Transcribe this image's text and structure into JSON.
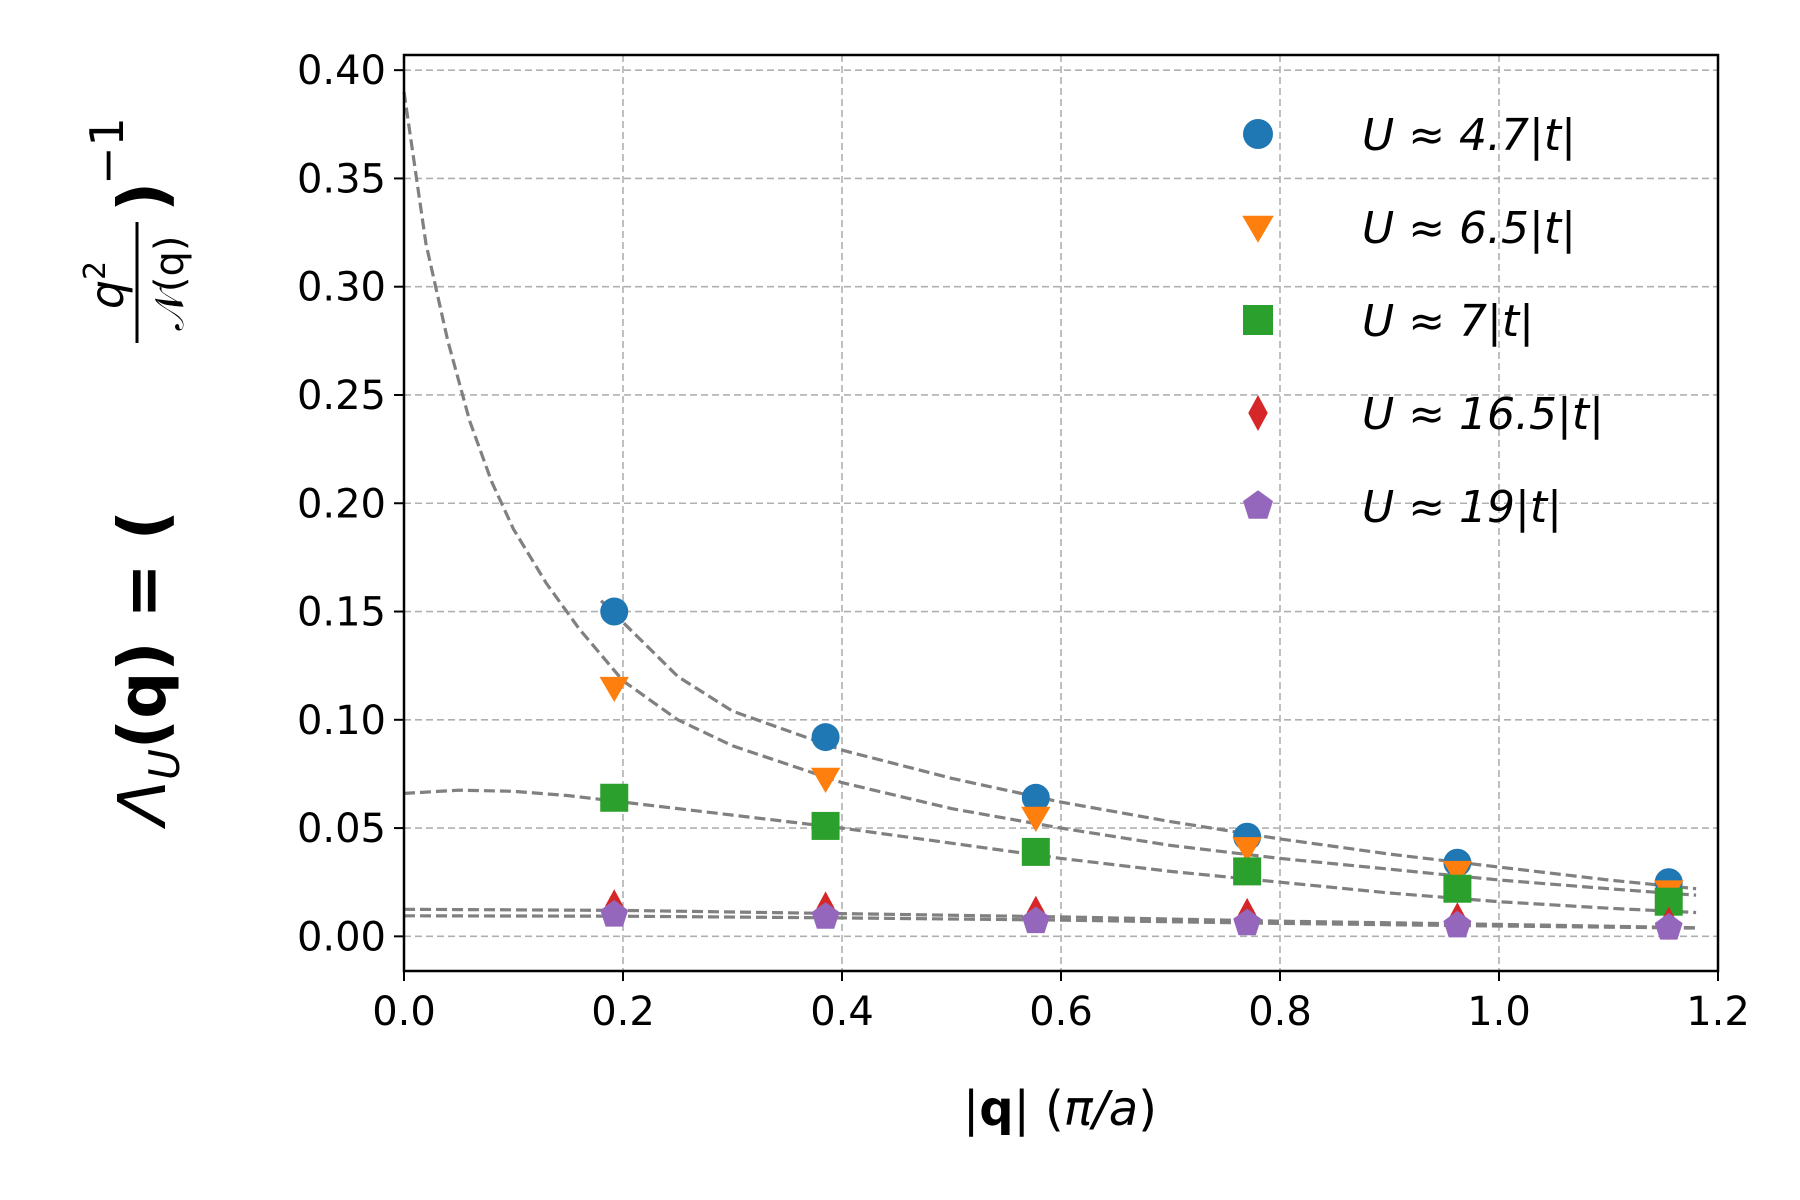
{
  "chart_data": {
    "type": "scatter",
    "xlabel_parts": [
      "|",
      "q",
      "| (",
      "π/a",
      ")"
    ],
    "ylabel_parts": {
      "lambda": "Λ",
      "sub": "U",
      "lhs_rest": "(q) = (",
      "num": "q",
      "num_exp": "2",
      "den": "𝒩(q)",
      "close": ")",
      "exp": "−1"
    },
    "xlim": [
      0.0,
      1.2
    ],
    "ylim": [
      -0.016,
      0.407
    ],
    "xticks": [
      "0.0",
      "0.2",
      "0.4",
      "0.6",
      "0.8",
      "1.0",
      "1.2"
    ],
    "xtick_values": [
      0.0,
      0.2,
      0.4,
      0.6,
      0.8,
      1.0,
      1.2
    ],
    "yticks": [
      "0.00",
      "0.05",
      "0.10",
      "0.15",
      "0.20",
      "0.25",
      "0.30",
      "0.35",
      "0.40"
    ],
    "ytick_values": [
      0.0,
      0.05,
      0.1,
      0.15,
      0.2,
      0.25,
      0.3,
      0.35,
      0.4
    ],
    "grid": true,
    "legend_placement": "top-right",
    "x": [
      0.192,
      0.385,
      0.577,
      0.77,
      0.962,
      1.155
    ],
    "series": [
      {
        "name": "U ≈ 4.7|t|",
        "marker": "circle",
        "color": "#1f77b4",
        "values": [
          0.15,
          0.092,
          0.064,
          0.046,
          0.034,
          0.025
        ]
      },
      {
        "name": "U ≈ 6.5|t|",
        "marker": "triangle-down",
        "color": "#ff7f0e",
        "values": [
          0.115,
          0.073,
          0.055,
          0.041,
          0.03,
          0.021
        ]
      },
      {
        "name": "U ≈ 7|t|",
        "marker": "square",
        "color": "#2ca02c",
        "values": [
          0.064,
          0.051,
          0.039,
          0.03,
          0.022,
          0.016
        ]
      },
      {
        "name": "U ≈ 16.5|t|",
        "marker": "thin-diamond",
        "color": "#d62728",
        "values": [
          0.014,
          0.013,
          0.011,
          0.01,
          0.008,
          0.006
        ]
      },
      {
        "name": "U ≈ 19|t|",
        "marker": "pentagon",
        "color": "#9467bd",
        "values": [
          0.01,
          0.009,
          0.007,
          0.006,
          0.005,
          0.004
        ]
      }
    ],
    "fit_curves": [
      {
        "color": "#808080",
        "style": "dashed",
        "x": [
          0.18,
          0.25,
          0.3,
          0.4,
          0.5,
          0.6,
          0.7,
          0.8,
          0.9,
          1.0,
          1.1,
          1.18
        ],
        "y": [
          0.155,
          0.12,
          0.104,
          0.086,
          0.073,
          0.062,
          0.053,
          0.045,
          0.038,
          0.032,
          0.026,
          0.022
        ]
      },
      {
        "color": "#808080",
        "style": "dashed",
        "x": [
          0.0,
          0.02,
          0.04,
          0.06,
          0.08,
          0.1,
          0.13,
          0.16,
          0.2,
          0.25,
          0.3,
          0.4,
          0.5,
          0.6,
          0.7,
          0.8,
          0.9,
          1.0,
          1.1,
          1.18
        ],
        "y": [
          0.39,
          0.32,
          0.275,
          0.238,
          0.21,
          0.188,
          0.163,
          0.142,
          0.118,
          0.1,
          0.088,
          0.071,
          0.059,
          0.05,
          0.042,
          0.036,
          0.031,
          0.026,
          0.022,
          0.019
        ]
      },
      {
        "color": "#808080",
        "style": "dashed",
        "x": [
          0.0,
          0.05,
          0.1,
          0.15,
          0.2,
          0.3,
          0.4,
          0.5,
          0.6,
          0.7,
          0.8,
          0.9,
          1.0,
          1.1,
          1.18
        ],
        "y": [
          0.066,
          0.0675,
          0.067,
          0.065,
          0.062,
          0.056,
          0.05,
          0.043,
          0.036,
          0.03,
          0.025,
          0.02,
          0.016,
          0.013,
          0.011
        ]
      },
      {
        "color": "#808080",
        "style": "dashed",
        "x": [
          0.0,
          0.2,
          0.4,
          0.6,
          0.8,
          1.0,
          1.18
        ],
        "y": [
          0.0125,
          0.012,
          0.0105,
          0.009,
          0.007,
          0.0055,
          0.004
        ]
      },
      {
        "color": "#808080",
        "style": "dashed",
        "x": [
          0.0,
          0.2,
          0.4,
          0.6,
          0.8,
          1.0,
          1.18
        ],
        "y": [
          0.0095,
          0.0093,
          0.0085,
          0.0075,
          0.006,
          0.0048,
          0.0038
        ]
      }
    ]
  }
}
